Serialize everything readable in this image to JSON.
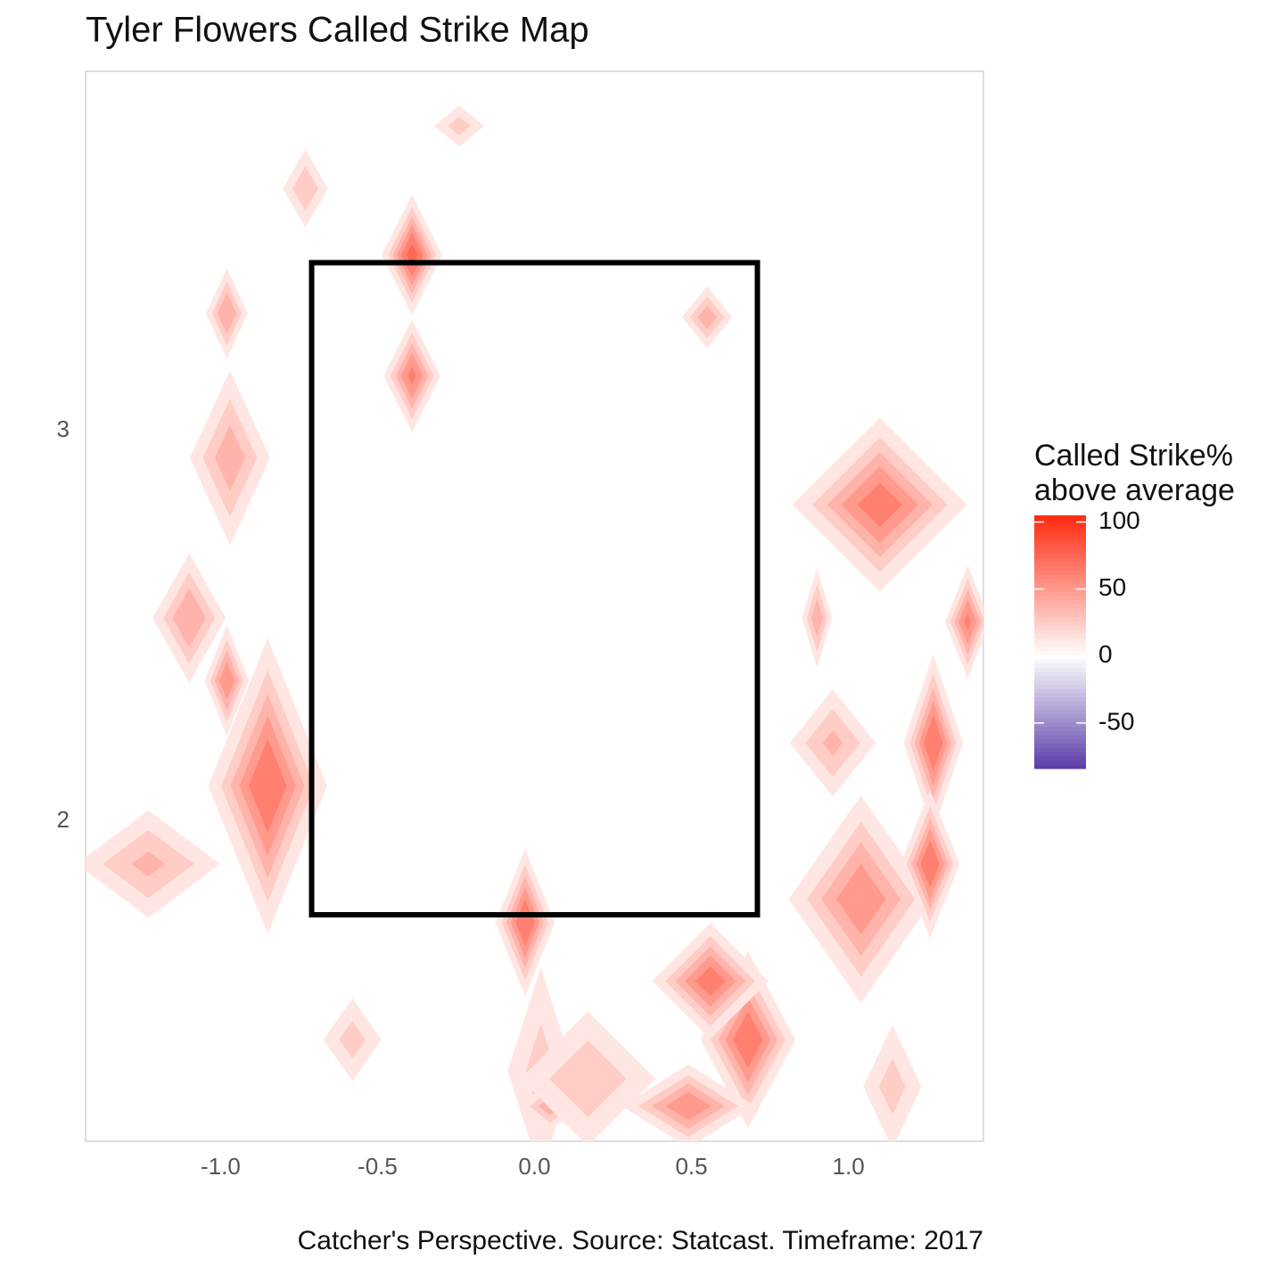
{
  "chart_data": {
    "type": "contour",
    "title": "Tyler Flowers Called Strike Map",
    "caption": "Catcher's Perspective. Source: Statcast. Timeframe: 2017",
    "xlim": [
      -1.43,
      1.43
    ],
    "ylim": [
      1.18,
      3.92
    ],
    "xticks": [
      {
        "value": -1,
        "label": "-1.0"
      },
      -0.5,
      {
        "value": 0,
        "label": "0.0"
      },
      0.5,
      {
        "value": 1,
        "label": "1.0"
      }
    ],
    "yticks": [
      2,
      3
    ],
    "strike_zone": {
      "x": [
        -0.71,
        0.71
      ],
      "y": [
        1.76,
        3.43
      ],
      "color": "#000000"
    },
    "legend": {
      "title": [
        "Called Strike%",
        "above average"
      ],
      "lim": [
        -84,
        105
      ],
      "ticks": [
        -50,
        0,
        50,
        100
      ],
      "colors": {
        "low": "#5a3ca8",
        "mid": "#ffffff",
        "high": "#ff2a10"
      }
    },
    "hotspots": [
      {
        "x": -0.85,
        "y": 2.09,
        "sx": 0.1,
        "sy": 0.2,
        "value": 75
      },
      {
        "x": 1.1,
        "y": 2.81,
        "sx": 0.15,
        "sy": 0.12,
        "value": 70
      },
      {
        "x": 1.04,
        "y": 1.8,
        "sx": 0.13,
        "sy": 0.15,
        "value": 60
      },
      {
        "x": 0.68,
        "y": 1.44,
        "sx": 0.08,
        "sy": 0.12,
        "value": 75
      },
      {
        "x": 0.56,
        "y": 1.59,
        "sx": 0.1,
        "sy": 0.08,
        "value": 70
      },
      {
        "x": 0.49,
        "y": 1.27,
        "sx": 0.12,
        "sy": 0.06,
        "value": 60
      },
      {
        "x": 1.27,
        "y": 2.2,
        "sx": 0.05,
        "sy": 0.12,
        "value": 75
      },
      {
        "x": 1.26,
        "y": 1.89,
        "sx": 0.05,
        "sy": 0.1,
        "value": 75
      },
      {
        "x": 1.38,
        "y": 2.51,
        "sx": 0.04,
        "sy": 0.08,
        "value": 65
      },
      {
        "x": -0.03,
        "y": 1.74,
        "sx": 0.05,
        "sy": 0.1,
        "value": 75
      },
      {
        "x": -0.39,
        "y": 3.45,
        "sx": 0.05,
        "sy": 0.08,
        "value": 80
      },
      {
        "x": -0.39,
        "y": 3.14,
        "sx": 0.05,
        "sy": 0.08,
        "value": 65
      },
      {
        "x": -0.98,
        "y": 3.3,
        "sx": 0.04,
        "sy": 0.07,
        "value": 50
      },
      {
        "x": -0.97,
        "y": 2.93,
        "sx": 0.08,
        "sy": 0.14,
        "value": 45
      },
      {
        "x": -1.1,
        "y": 2.52,
        "sx": 0.07,
        "sy": 0.1,
        "value": 50
      },
      {
        "x": -0.98,
        "y": 2.36,
        "sx": 0.04,
        "sy": 0.08,
        "value": 60
      },
      {
        "x": -1.23,
        "y": 1.89,
        "sx": 0.15,
        "sy": 0.09,
        "value": 40
      },
      {
        "x": 0.55,
        "y": 3.29,
        "sx": 0.05,
        "sy": 0.05,
        "value": 45
      },
      {
        "x": 0.95,
        "y": 2.2,
        "sx": 0.09,
        "sy": 0.09,
        "value": 40
      },
      {
        "x": 0.9,
        "y": 2.52,
        "sx": 0.03,
        "sy": 0.08,
        "value": 45
      },
      {
        "x": 1.14,
        "y": 1.32,
        "sx": 0.07,
        "sy": 0.12,
        "value": 30
      },
      {
        "x": -0.58,
        "y": 1.44,
        "sx": 0.07,
        "sy": 0.08,
        "value": 30
      },
      {
        "x": -0.73,
        "y": 3.62,
        "sx": 0.05,
        "sy": 0.07,
        "value": 35
      },
      {
        "x": -0.24,
        "y": 3.78,
        "sx": 0.06,
        "sy": 0.04,
        "value": 30
      },
      {
        "x": 0.02,
        "y": 1.36,
        "sx": 0.08,
        "sy": 0.2,
        "value": 30
      },
      {
        "x": 0.05,
        "y": 1.27,
        "sx": 0.06,
        "sy": 0.04,
        "value": 45
      },
      {
        "x": 0.17,
        "y": 1.34,
        "sx": 0.15,
        "sy": 0.12,
        "value": 35
      }
    ]
  }
}
